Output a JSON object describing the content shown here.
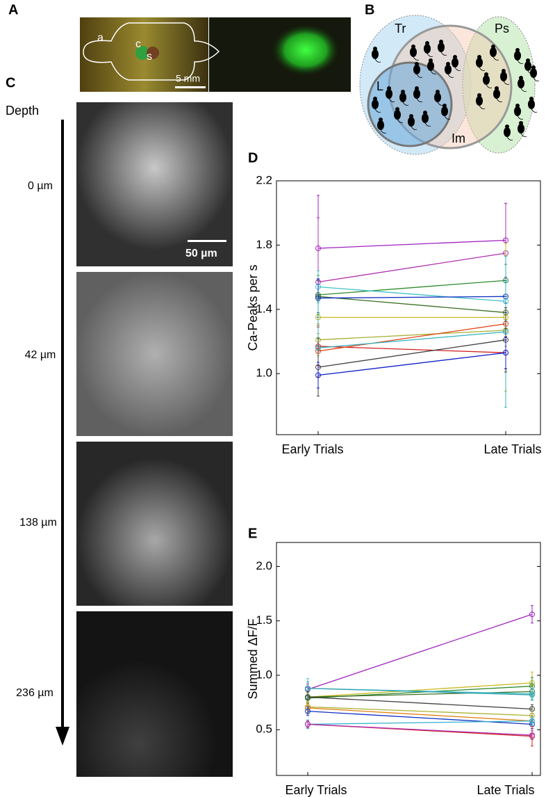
{
  "panel_labels": [
    "A",
    "B",
    "C",
    "D",
    "E"
  ],
  "panel_a": {
    "labels": [
      "a",
      "c",
      "s"
    ],
    "scale_bar": "5 mm"
  },
  "panel_b": {
    "sets": [
      "Tr",
      "Ps",
      "L",
      "Im"
    ]
  },
  "panel_c": {
    "axis_label": "Depth",
    "depths": [
      "0 µm",
      "42 µm",
      "138 µm",
      "236 µm"
    ],
    "scale_bar": "50 µm"
  },
  "chart_data": [
    {
      "type": "line",
      "ylabel": "Ca-Peaks per s",
      "categories": [
        "Early Trials",
        "Late Trials"
      ],
      "ylim": [
        0.62,
        2.2
      ],
      "yticks": [
        {
          "value": 1.0,
          "label": "1.0"
        },
        1.4,
        1.8,
        2.2
      ],
      "series": [
        {
          "color": "#a020c0",
          "values": [
            1.78,
            1.83
          ],
          "errors": [
            0.33,
            0.23
          ]
        },
        {
          "color": "#b030b0",
          "values": [
            1.57,
            1.75
          ],
          "errors": [
            0.4,
            0.31
          ]
        },
        {
          "color": "#2e8b2e",
          "values": [
            1.49,
            1.58
          ],
          "errors": [
            0.12,
            0.1
          ]
        },
        {
          "color": "#40c0c8",
          "values": [
            1.54,
            1.45
          ],
          "errors": [
            0.1,
            0.12
          ]
        },
        {
          "color": "#3a6e20",
          "values": [
            1.48,
            1.38
          ],
          "errors": [
            0.1,
            0.1
          ]
        },
        {
          "color": "#1030c0",
          "values": [
            1.47,
            1.48
          ],
          "errors": [
            0.12,
            0.1
          ]
        },
        {
          "color": "#c8b820",
          "values": [
            1.35,
            1.35
          ],
          "errors": [
            0.1,
            0.46
          ]
        },
        {
          "color": "#a8b030",
          "values": [
            1.21,
            1.27
          ],
          "errors": [
            0.1,
            0.1
          ]
        },
        {
          "color": "#d02020",
          "values": [
            1.17,
            1.13
          ],
          "errors": [
            0.12,
            0.1
          ]
        },
        {
          "color": "#e04010",
          "values": [
            1.14,
            1.31
          ],
          "errors": [
            0.16,
            0.1
          ]
        },
        {
          "color": "#30b0c0",
          "values": [
            1.16,
            1.26
          ],
          "errors": [
            0.3,
            0.47
          ]
        },
        {
          "color": "#404040",
          "values": [
            1.04,
            1.21
          ],
          "errors": [
            0.18,
            0.2
          ]
        },
        {
          "color": "#1020c8",
          "values": [
            0.99,
            1.13
          ],
          "errors": [
            0.08,
            0.1
          ]
        }
      ]
    },
    {
      "type": "line",
      "ylabel": "Summed ΔF/F",
      "categories": [
        "Early Trials",
        "Late Trials"
      ],
      "ylim": [
        0.08,
        2.22
      ],
      "yticks": [
        0.5,
        {
          "value": 1.0,
          "label": "1.0"
        },
        1.5,
        {
          "value": 2.0,
          "label": "2.0"
        }
      ],
      "series": [
        {
          "color": "#a020c0",
          "values": [
            0.87,
            1.56
          ],
          "errors": [
            0.05,
            0.08
          ]
        },
        {
          "color": "#c8b820",
          "values": [
            0.8,
            0.93
          ],
          "errors": [
            0.05,
            0.1
          ]
        },
        {
          "color": "#2e8b2e",
          "values": [
            0.79,
            0.9
          ],
          "errors": [
            0.05,
            0.08
          ]
        },
        {
          "color": "#3a6e20",
          "values": [
            0.8,
            0.85
          ],
          "errors": [
            0.05,
            0.05
          ]
        },
        {
          "color": "#40c0c8",
          "values": [
            0.88,
            0.83
          ],
          "errors": [
            0.09,
            0.05
          ]
        },
        {
          "color": "#30a0b0",
          "values": [
            0.88,
            0.82
          ],
          "errors": [
            0.06,
            0.05
          ]
        },
        {
          "color": "#404040",
          "values": [
            0.8,
            0.69
          ],
          "errors": [
            0.05,
            0.04
          ]
        },
        {
          "color": "#a8b030",
          "values": [
            0.71,
            0.63
          ],
          "errors": [
            0.05,
            0.05
          ]
        },
        {
          "color": "#e08010",
          "values": [
            0.7,
            0.58
          ],
          "errors": [
            0.05,
            0.05
          ]
        },
        {
          "color": "#1030c0",
          "values": [
            0.67,
            0.55
          ],
          "errors": [
            0.04,
            0.04
          ]
        },
        {
          "color": "#30b0d0",
          "values": [
            0.55,
            0.58
          ],
          "errors": [
            0.04,
            0.04
          ]
        },
        {
          "color": "#d02020",
          "values": [
            0.55,
            0.44
          ],
          "errors": [
            0.03,
            0.09
          ]
        },
        {
          "color": "#b030b0",
          "values": [
            0.55,
            0.45
          ],
          "errors": [
            0.03,
            0.04
          ]
        }
      ]
    }
  ]
}
